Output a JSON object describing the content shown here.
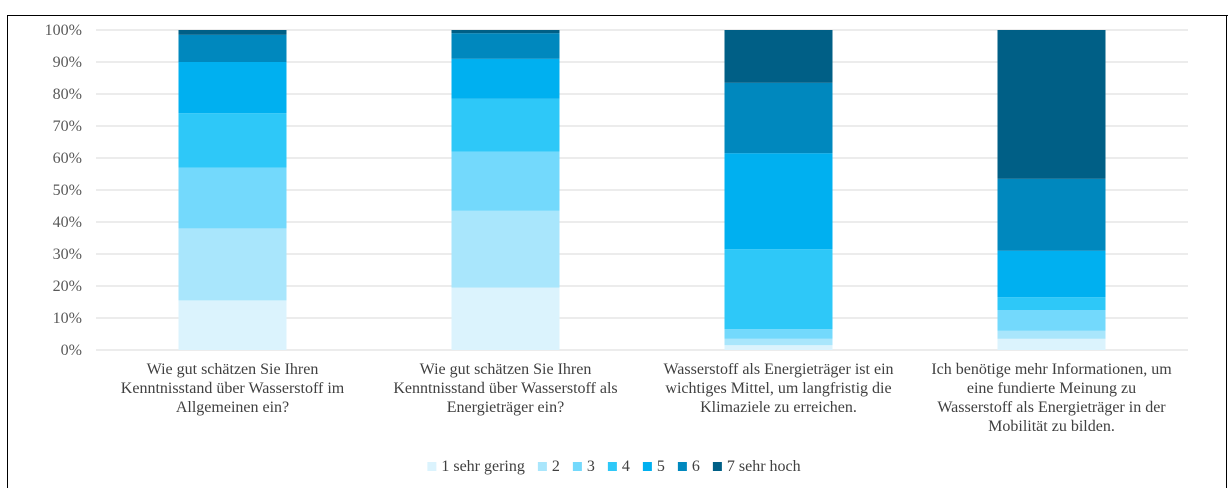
{
  "chart_data": {
    "type": "bar",
    "stacked": true,
    "percent": true,
    "title": "",
    "xlabel": "",
    "ylabel": "",
    "ylim": [
      0,
      100
    ],
    "ytick_labels": [
      "0%",
      "10%",
      "20%",
      "30%",
      "40%",
      "50%",
      "60%",
      "70%",
      "80%",
      "90%",
      "100%"
    ],
    "grid": true,
    "legend_position": "bottom",
    "categories": [
      [
        "Wie gut schätzen Sie Ihren",
        "Kenntnisstand über Wasserstoff im",
        "Allgemeinen ein?"
      ],
      [
        "Wie gut schätzen Sie Ihren",
        "Kenntnisstand über Wasserstoff als",
        "Energieträger ein?"
      ],
      [
        "Wasserstoff als Energieträger ist ein",
        "wichtiges Mittel, um langfristig die",
        "Klimaziele zu erreichen."
      ],
      [
        "Ich benötige mehr Informationen, um",
        "eine fundierte Meinung zu",
        "Wasserstoff als Energieträger in der",
        "Mobilität zu bilden."
      ]
    ],
    "series": [
      {
        "name": "1 sehr gering",
        "color": "#dbf3fd",
        "values": [
          15.5,
          19.5,
          1.5,
          3.5
        ]
      },
      {
        "name": "2",
        "color": "#a9e6fc",
        "values": [
          22.5,
          24.0,
          2.0,
          2.5
        ]
      },
      {
        "name": "3",
        "color": "#73d9fc",
        "values": [
          19.0,
          18.5,
          3.0,
          6.5
        ]
      },
      {
        "name": "4",
        "color": "#2ec8f8",
        "values": [
          17.0,
          16.5,
          25.0,
          4.0
        ]
      },
      {
        "name": "5",
        "color": "#00b0f0",
        "values": [
          16.0,
          12.5,
          30.0,
          14.5
        ]
      },
      {
        "name": "6",
        "color": "#0088be",
        "values": [
          8.5,
          8.0,
          22.0,
          22.5
        ]
      },
      {
        "name": "7 sehr hoch",
        "color": "#005f86",
        "values": [
          1.5,
          1.0,
          16.5,
          46.5
        ]
      }
    ]
  }
}
